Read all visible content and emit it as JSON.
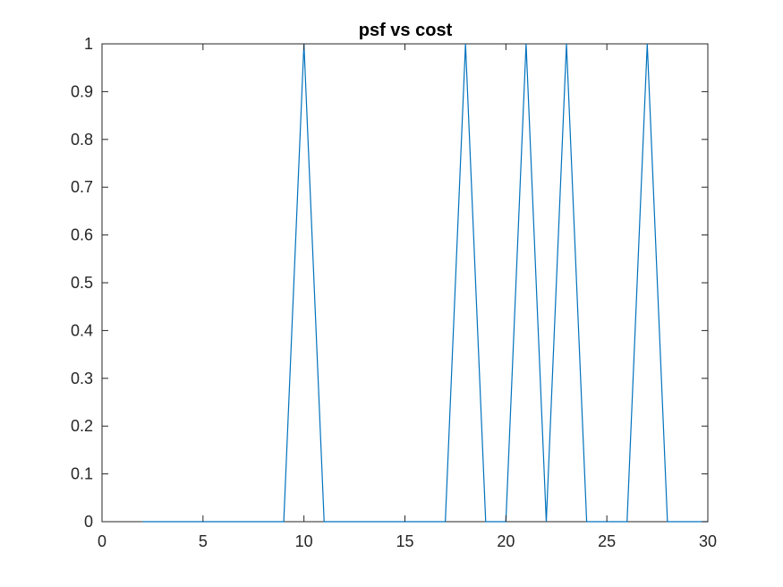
{
  "chart_data": {
    "type": "line",
    "title": "psf vs cost",
    "xlabel": "",
    "ylabel": "",
    "xlim": [
      0,
      30
    ],
    "ylim": [
      0,
      1
    ],
    "x_ticks": [
      0,
      5,
      10,
      15,
      20,
      25,
      30
    ],
    "y_ticks": [
      0,
      0.1,
      0.2,
      0.3,
      0.4,
      0.5,
      0.6,
      0.7,
      0.8,
      0.9,
      1
    ],
    "x_tick_labels": [
      "0",
      "5",
      "10",
      "15",
      "20",
      "25",
      "30"
    ],
    "y_tick_labels": [
      "0",
      "0.1",
      "0.2",
      "0.3",
      "0.4",
      "0.5",
      "0.6",
      "0.7",
      "0.8",
      "0.9",
      "1"
    ],
    "grid": false,
    "series": [
      {
        "color": "#0072BD",
        "x": [
          2,
          3,
          4,
          5,
          6,
          7,
          8,
          9,
          10,
          11,
          12,
          13,
          14,
          15,
          16,
          17,
          18,
          19,
          20,
          21,
          22,
          23,
          24,
          25,
          26,
          27,
          28,
          29,
          30
        ],
        "y": [
          0,
          0,
          0,
          0,
          0,
          0,
          0,
          0,
          1,
          0,
          0,
          0,
          0,
          0,
          0,
          0,
          1,
          0,
          0,
          1,
          0,
          1,
          0,
          0,
          0,
          1,
          0,
          0,
          0
        ]
      }
    ],
    "colors": {
      "axis": "#262626",
      "line": "#0072BD",
      "background": "#ffffff"
    }
  }
}
